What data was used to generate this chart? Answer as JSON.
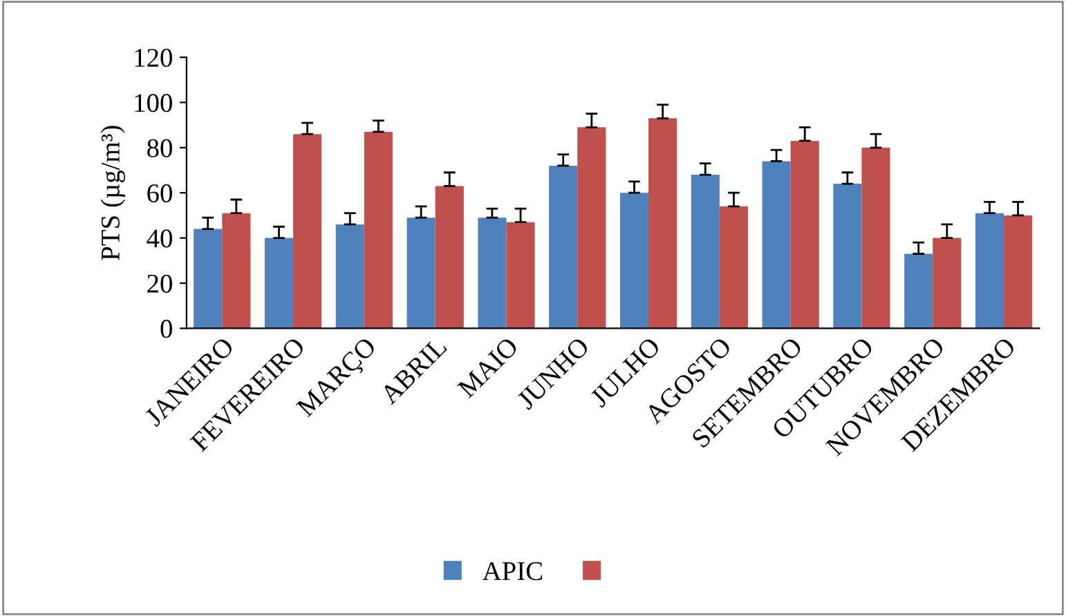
{
  "chart_data": {
    "type": "bar",
    "ylabel": "PTS (µg/m³)",
    "categories": [
      "JANEIRO",
      "FEVEREIRO",
      "MARÇO",
      "ABRIL",
      "MAIO",
      "JUNHO",
      "JULHO",
      "AGOSTO",
      "SETEMBRO",
      "OUTUBRO",
      "NOVEMBRO",
      "DEZEMBRO"
    ],
    "series": [
      {
        "name": "APIC",
        "color": "#4f81bd",
        "values": [
          44,
          40,
          46,
          49,
          49,
          72,
          60,
          68,
          74,
          64,
          33,
          51
        ],
        "errors": [
          5,
          5,
          5,
          5,
          4,
          5,
          5,
          5,
          5,
          5,
          5,
          5
        ]
      },
      {
        "color": "#c0504d",
        "values": [
          51,
          86,
          87,
          63,
          47,
          89,
          93,
          54,
          83,
          80,
          40,
          50
        ],
        "errors": [
          6,
          5,
          5,
          6,
          6,
          6,
          6,
          6,
          6,
          6,
          6,
          6
        ]
      }
    ],
    "ylim": [
      0,
      120
    ],
    "yticks": [
      0,
      20,
      40,
      60,
      80,
      100,
      120
    ],
    "grid": false,
    "legend": "bottom"
  }
}
